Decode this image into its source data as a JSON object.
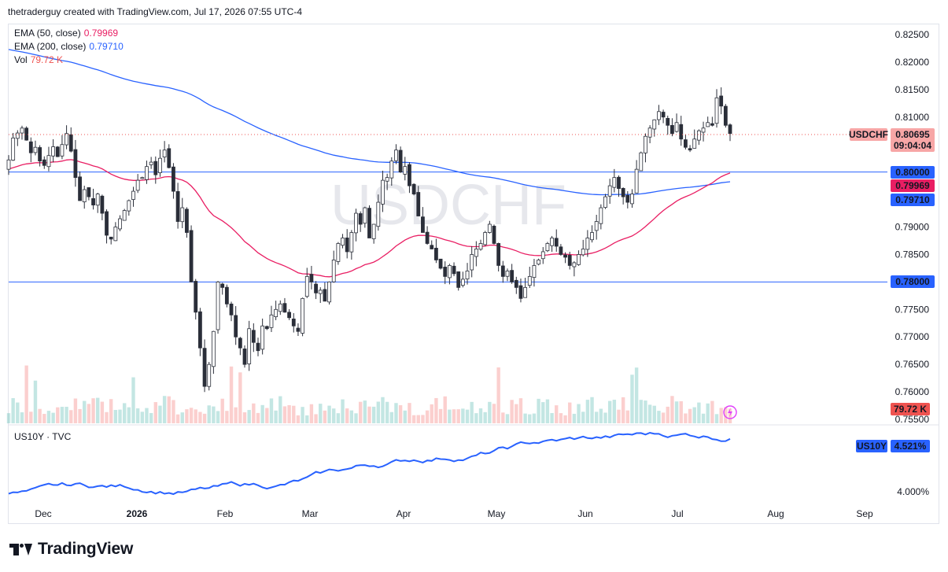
{
  "header": {
    "credit": "thetraderguy created with TradingView.com, Jul 17, 2026 07:55 UTC-4"
  },
  "symbol_watermark": "USDCHF",
  "legend": {
    "ema50_label": "EMA (50, close)",
    "ema50_value": "0.79969",
    "ema200_label": "EMA (200, close)",
    "ema200_value": "0.79710",
    "vol_label": "Vol",
    "vol_value": "79.72 K"
  },
  "price_badges": {
    "symbol": "USDCHF",
    "last": "0.80695",
    "countdown": "09:04:04",
    "line1": "0.80000",
    "ema50": "0.79969",
    "ema200": "0.79710",
    "line2": "0.78000",
    "vol": "79.72 K"
  },
  "sub_pane": {
    "title": "US10Y · TVC",
    "badge_symbol": "US10Y",
    "badge_value": "4.521%",
    "tick": "4.000%"
  },
  "x_axis": [
    "Dec",
    "2026",
    "Feb",
    "Mar",
    "Apr",
    "May",
    "Jun",
    "Jul",
    "Aug",
    "Sep"
  ],
  "brand": "TradingView",
  "colors": {
    "up": "#26a69a",
    "down": "#ef5350",
    "ema50": "#e91e63",
    "ema200": "#2962ff",
    "hline": "#2962ff"
  },
  "chart_data": {
    "type": "candlestick",
    "title": "USDCHF",
    "y_ticks": [
      0.825,
      0.82,
      0.815,
      0.81,
      0.805,
      0.8,
      0.795,
      0.79,
      0.785,
      0.78,
      0.775,
      0.77,
      0.765,
      0.76,
      0.755
    ],
    "ylim": [
      0.7545,
      0.826
    ],
    "horizontal_lines": [
      0.8,
      0.78
    ],
    "x_range": [
      "2025-11-20",
      "2026-09-15"
    ],
    "close_series": [
      0.8022,
      0.8062,
      0.8071,
      0.808,
      0.8058,
      0.8035,
      0.8045,
      0.802,
      0.8012,
      0.803,
      0.8046,
      0.8028,
      0.805,
      0.807,
      0.8038,
      0.799,
      0.7948,
      0.7968,
      0.7955,
      0.794,
      0.796,
      0.7925,
      0.7885,
      0.7878,
      0.79,
      0.7915,
      0.793,
      0.7948,
      0.7965,
      0.7985,
      0.799,
      0.801,
      0.8018,
      0.7995,
      0.8025,
      0.804,
      0.8008,
      0.7965,
      0.791,
      0.7935,
      0.789,
      0.78,
      0.7745,
      0.768,
      0.761,
      0.765,
      0.771,
      0.78,
      0.779,
      0.776,
      0.774,
      0.77,
      0.768,
      0.765,
      0.7715,
      0.769,
      0.7675,
      0.772,
      0.7715,
      0.774,
      0.775,
      0.776,
      0.7745,
      0.7735,
      0.772,
      0.771,
      0.777,
      0.781,
      0.78,
      0.778,
      0.7785,
      0.7765,
      0.78,
      0.784,
      0.787,
      0.788,
      0.7855,
      0.789,
      0.7925,
      0.7905,
      0.7935,
      0.788,
      0.7905,
      0.7945,
      0.7985,
      0.799,
      0.802,
      0.804,
      0.8,
      0.801,
      0.7975,
      0.796,
      0.792,
      0.789,
      0.787,
      0.786,
      0.784,
      0.7825,
      0.781,
      0.783,
      0.7815,
      0.779,
      0.7805,
      0.782,
      0.785,
      0.786,
      0.787,
      0.789,
      0.7905,
      0.787,
      0.783,
      0.781,
      0.782,
      0.78,
      0.779,
      0.777,
      0.779,
      0.781,
      0.783,
      0.784,
      0.7855,
      0.787,
      0.788,
      0.7865,
      0.785,
      0.7845,
      0.783,
      0.7835,
      0.785,
      0.786,
      0.788,
      0.789,
      0.791,
      0.7935,
      0.7955,
      0.7975,
      0.799,
      0.797,
      0.7955,
      0.7945,
      0.796,
      0.8005,
      0.8035,
      0.8065,
      0.808,
      0.8095,
      0.811,
      0.81,
      0.8085,
      0.807,
      0.809,
      0.806,
      0.8045,
      0.804,
      0.806,
      0.8075,
      0.808,
      0.809,
      0.8085,
      0.8135,
      0.812,
      0.8085,
      0.807
    ],
    "ema50": {
      "name": "EMA (50, close)",
      "last": 0.79969
    },
    "ema200": {
      "name": "EMA (200, close)",
      "last": 0.7971
    },
    "volume_last": "79.72 K",
    "sub_series": {
      "name": "US10Y · TVC",
      "last": 4.521,
      "unit": "%"
    }
  }
}
